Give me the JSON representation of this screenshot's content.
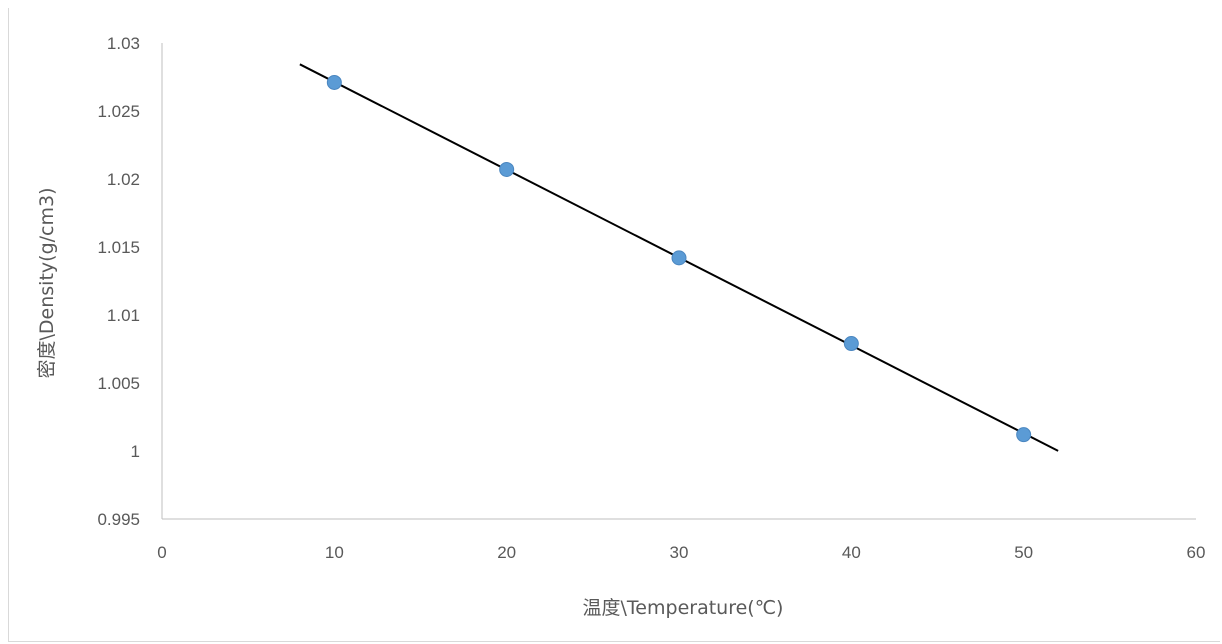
{
  "title": "",
  "chart_data": {
    "type": "scatter",
    "title": "",
    "xlabel": "温度\\Temperature(℃)",
    "ylabel": "密度\\Density(g/cm3)",
    "xlim": [
      0,
      60
    ],
    "ylim": [
      0.995,
      1.03
    ],
    "x_ticks": [
      "0",
      "10",
      "20",
      "30",
      "40",
      "50",
      "60"
    ],
    "y_ticks": [
      "0.995",
      "1",
      "1.005",
      "1.01",
      "1.015",
      "1.02",
      "1.025",
      "1.03"
    ],
    "grid": false,
    "legend": "none",
    "point_color": "#5b9bd5",
    "trendline_color": "#000000",
    "points": [
      {
        "x": 10,
        "y": 1.0271
      },
      {
        "x": 20,
        "y": 1.0207
      },
      {
        "x": 30,
        "y": 1.0142
      },
      {
        "x": 40,
        "y": 1.0079
      },
      {
        "x": 50,
        "y": 1.0012
      }
    ],
    "trendline": {
      "type": "linear",
      "x_start": 8,
      "x_end": 52
    }
  }
}
